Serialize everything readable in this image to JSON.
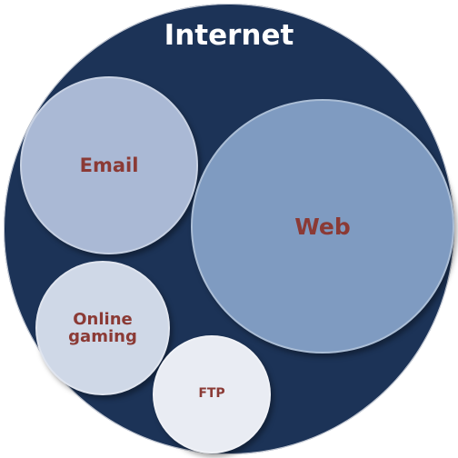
{
  "diagram": {
    "title": "Internet",
    "colors": {
      "outer_fill": "#1c3357",
      "title_text": "#ffffff",
      "inner_label_text": "#8b3a35"
    },
    "circles": [
      {
        "id": "email",
        "label": "Email",
        "fill": "#aab9d5"
      },
      {
        "id": "web",
        "label": "Web",
        "fill": "#7f9bc1"
      },
      {
        "id": "online-gaming",
        "label": "Online\ngaming",
        "fill": "#cfd8e7"
      },
      {
        "id": "ftp",
        "label": "FTP",
        "fill": "#e9ecf3"
      }
    ]
  }
}
